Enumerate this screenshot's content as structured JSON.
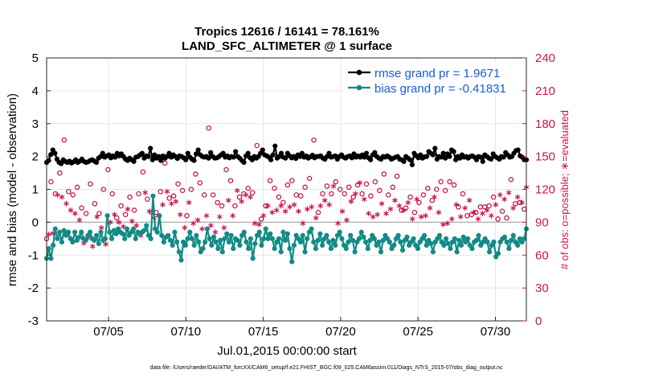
{
  "chart_data": {
    "type": "line",
    "title_line1": "Tropics 12616 / 16141 = 78.161%",
    "title_line2": "LAND_SFC_ALTIMETER @ 1 surface",
    "xlabel": "Jul.01,2015 00:00:00 start",
    "ylabel_left": "rmse and bias (model - observation)",
    "ylabel_right": "# of obs: o=possible; ∗=evaluated",
    "x_ticks": [
      {
        "value": 5,
        "label": "07/05"
      },
      {
        "value": 10,
        "label": "07/10"
      },
      {
        "value": 15,
        "label": "07/15"
      },
      {
        "value": 20,
        "label": "07/20"
      },
      {
        "value": 25,
        "label": "07/25"
      },
      {
        "value": 30,
        "label": "07/30"
      }
    ],
    "xlim": [
      1,
      32
    ],
    "ylim_left": [
      -3,
      5
    ],
    "ylim_right": [
      0,
      240
    ],
    "yticks_left": [
      "-3",
      "-2",
      "-1",
      "0",
      "1",
      "2",
      "3",
      "4",
      "5"
    ],
    "yticks_right": [
      "0",
      "30",
      "60",
      "90",
      "120",
      "150",
      "180",
      "210",
      "240"
    ],
    "legend": [
      {
        "name": "rmse grand pr = 1.9671",
        "color": "#000000"
      },
      {
        "name": "bias grand pr = -0.41831",
        "color": "#138a86"
      }
    ],
    "rmse": [
      1.82,
      1.88,
      2.06,
      2.2,
      2.1,
      1.92,
      1.82,
      1.78,
      1.9,
      1.85,
      1.82,
      1.86,
      1.8,
      1.84,
      1.9,
      1.82,
      1.86,
      1.92,
      1.85,
      1.82,
      1.84,
      1.88,
      1.9,
      1.86,
      1.82,
      1.95,
      2.0,
      2.1,
      1.98,
      2.02,
      2.05,
      1.96,
      2.02,
      1.98,
      2.1,
      2.02,
      2.08,
      2.0,
      1.92,
      1.88,
      1.95,
      1.9,
      1.85,
      1.98,
      2.0,
      2.05,
      2.1,
      1.95,
      2.02,
      2.0,
      2.25,
      1.9,
      2.05,
      1.95,
      2.0,
      1.88,
      2.02,
      1.95,
      2.0,
      2.1,
      1.98,
      2.05,
      2.0,
      1.94,
      2.02,
      2.0,
      1.96,
      1.9,
      2.1,
      1.98,
      1.92,
      1.88,
      2.08,
      2.2,
      2.05,
      2.0,
      1.98,
      2.0,
      1.95,
      2.12,
      2.0,
      1.95,
      1.96,
      2.0,
      2.05,
      2.1,
      1.98,
      2.02,
      1.96,
      2.0,
      1.98,
      2.15,
      2.0,
      1.95,
      1.88,
      1.82,
      2.02,
      2.1,
      1.96,
      1.9,
      2.0,
      1.95,
      2.0,
      2.1,
      2.2,
      2.05,
      2.02,
      1.98,
      1.9,
      2.05,
      2.32,
      1.95,
      2.0,
      2.1,
      1.98,
      1.95,
      2.1,
      2.02,
      1.96,
      2.0,
      1.94,
      2.05,
      2.0,
      2.1,
      1.98,
      2.02,
      1.95,
      1.99,
      2.04,
      1.96,
      2.0,
      2.0,
      2.02,
      1.95,
      1.92,
      2.0,
      2.1,
      1.98,
      2.0,
      2.02,
      1.92,
      2.0,
      2.05,
      1.98,
      1.95,
      2.0,
      2.02,
      1.96,
      2.08,
      1.98,
      2.02,
      1.98,
      2.05,
      1.98,
      2.1,
      1.96,
      1.9,
      2.05,
      2.12,
      2.0,
      1.95,
      1.92,
      2.0,
      1.98,
      2.02,
      1.98,
      1.92,
      1.95,
      1.98,
      2.0,
      1.92,
      1.9,
      1.85,
      2.0,
      1.95,
      1.9,
      1.75,
      2.1,
      2.02,
      1.96,
      2.05,
      1.95,
      1.99,
      2.0,
      2.15,
      2.1,
      2.05,
      2.25,
      1.92,
      2.0,
      1.98,
      2.1,
      1.95,
      2.08,
      2.0,
      2.2,
      2.15,
      1.9,
      2.0,
      1.95,
      2.05,
      1.98,
      2.0,
      1.95,
      2.0,
      2.02,
      1.98,
      1.9,
      2.0,
      1.98,
      1.85,
      2.05,
      2.0,
      1.95,
      1.92,
      2.08,
      2.0,
      1.96,
      1.92,
      2.0,
      1.98,
      2.12,
      2.05,
      1.98,
      2.0,
      2.1,
      2.18,
      2.2,
      2.02,
      1.98,
      1.9,
      1.9
    ],
    "bias": [
      -1.1,
      -0.8,
      -1.1,
      -0.7,
      -0.2,
      -0.5,
      -0.3,
      -0.6,
      -0.25,
      -0.4,
      -0.3,
      -0.5,
      -0.6,
      -0.3,
      -0.55,
      -0.45,
      -0.3,
      -0.5,
      -0.55,
      -0.4,
      -0.3,
      -0.5,
      -0.55,
      -0.4,
      -0.65,
      -0.3,
      -0.55,
      -0.5,
      0.2,
      -0.3,
      -0.5,
      -0.25,
      -0.35,
      -0.2,
      -0.3,
      -0.35,
      -0.5,
      -0.2,
      -0.4,
      -0.3,
      -0.2,
      -0.5,
      -0.3,
      -0.35,
      -0.3,
      -0.25,
      -0.1,
      -0.4,
      -0.5,
      0.8,
      -0.2,
      -0.3,
      0.2,
      -0.4,
      -0.6,
      -0.45,
      -0.4,
      -0.55,
      -0.7,
      -0.3,
      -0.6,
      -0.9,
      -1.15,
      -0.6,
      -0.7,
      -0.5,
      -0.3,
      -0.5,
      -0.7,
      -0.4,
      -0.6,
      -0.9,
      -0.8,
      -0.6,
      -0.2,
      -0.5,
      -0.7,
      -0.45,
      -0.6,
      -0.8,
      -0.55,
      -0.9,
      -0.5,
      -0.35,
      -0.6,
      -0.4,
      -0.8,
      -0.5,
      -0.55,
      -0.7,
      -0.4,
      -0.3,
      -0.6,
      -0.8,
      -0.5,
      -1.1,
      -0.65,
      -0.4,
      -0.3,
      -0.7,
      -0.5,
      -0.2,
      -0.5,
      -0.35,
      -0.5,
      -0.8,
      -0.6,
      -0.5,
      -0.9,
      -0.3,
      -0.55,
      -0.35,
      -0.8,
      -1.2,
      -0.7,
      -0.4,
      -0.5,
      -0.6,
      -0.4,
      -0.9,
      -0.5,
      -0.3,
      -0.2,
      -0.6,
      -0.8,
      -0.55,
      -0.35,
      -0.7,
      -0.5,
      -0.4,
      -0.6,
      -0.8,
      -0.55,
      -0.7,
      -0.4,
      -0.3,
      -0.5,
      -0.7,
      -0.8,
      -0.6,
      -0.4,
      -0.55,
      -0.9,
      -0.6,
      -0.5,
      -0.3,
      -0.45,
      -0.6,
      -0.8,
      -0.55,
      -0.4,
      -0.5,
      -0.7,
      -0.6,
      -0.9,
      -0.55,
      -0.4,
      -0.5,
      -0.6,
      -0.8,
      -0.7,
      -0.5,
      -0.4,
      -0.6,
      -0.85,
      -0.55,
      -0.45,
      -0.7,
      -0.6,
      -0.5,
      -0.7,
      -0.8,
      -0.6,
      -0.5,
      -0.4,
      -0.7,
      -0.55,
      -0.65,
      -0.9,
      -0.6,
      -0.5,
      -0.4,
      -0.6,
      -0.7,
      -0.5,
      -0.65,
      -0.8,
      -0.6,
      -0.5,
      -0.9,
      -0.55,
      -0.7,
      -0.45,
      -0.6,
      -0.5,
      -0.7,
      -0.8,
      -0.6,
      -0.55,
      -0.4,
      -0.7,
      -0.6,
      -0.5,
      -0.6,
      -0.9,
      -0.7,
      -0.6,
      -1.05,
      -0.95,
      -0.6,
      -0.5,
      -0.45,
      -0.6,
      -0.8,
      -0.55,
      -0.4,
      -0.6,
      -0.7,
      -0.5,
      -0.6,
      -0.5,
      -0.2
    ],
    "obs_possible": [
      75,
      99,
      127,
      112,
      116,
      147,
      135,
      141,
      165,
      128,
      118,
      108,
      115,
      127,
      122,
      132,
      103,
      92,
      98,
      105,
      125,
      118,
      107,
      103,
      98,
      112,
      120,
      120,
      138,
      122,
      116,
      104,
      94,
      110,
      105,
      112,
      97,
      102,
      113,
      90,
      101,
      110,
      116,
      122,
      136,
      118,
      111,
      88,
      99,
      102,
      99,
      105,
      118,
      123,
      144,
      121,
      112,
      104,
      114,
      97,
      125,
      107,
      119,
      90,
      96,
      111,
      120,
      98,
      134,
      121,
      126,
      108,
      115,
      135,
      176,
      124,
      115,
      123,
      108,
      115,
      105,
      110,
      138,
      132,
      128,
      103,
      105,
      120,
      113,
      124,
      116,
      108,
      121,
      167,
      117,
      110,
      160,
      123,
      93,
      118,
      105,
      115,
      128,
      130,
      121,
      135,
      113,
      122,
      108,
      126,
      124,
      117,
      128,
      130,
      115,
      109,
      114,
      121,
      122,
      123,
      130,
      133,
      165,
      118,
      99,
      121,
      116,
      127,
      123,
      118,
      116,
      124,
      127,
      109,
      120,
      129,
      116,
      133,
      122,
      117,
      113,
      112,
      124,
      129,
      116,
      132,
      125,
      120,
      114,
      111,
      127,
      128,
      119,
      113,
      134,
      126,
      115,
      103,
      122,
      120,
      132,
      115,
      101,
      118,
      103,
      107,
      113,
      119,
      99,
      128,
      108,
      114,
      115,
      125,
      121,
      102,
      110,
      114,
      120,
      100,
      127,
      114,
      119,
      105,
      127,
      99,
      124,
      114,
      104,
      99,
      116,
      112,
      96,
      92,
      97,
      97,
      99,
      100,
      104,
      116,
      104,
      99,
      105,
      121,
      113,
      127,
      93,
      134,
      100,
      118,
      94,
      124,
      129,
      111,
      107,
      121,
      108,
      99,
      102,
      122
    ],
    "obs_evaluated": [
      83,
      79,
      66,
      80,
      88,
      115,
      125,
      113,
      102,
      107,
      90,
      101,
      95,
      98,
      83,
      92,
      73,
      71,
      68,
      76,
      74,
      68,
      72,
      95,
      69,
      85,
      99,
      70,
      77,
      90,
      92,
      97,
      105,
      90,
      88,
      86,
      78,
      102,
      94,
      91,
      93,
      87,
      83,
      78,
      95,
      117,
      108,
      100,
      87,
      94,
      120,
      96,
      98,
      106,
      125,
      118,
      103,
      107,
      95,
      109,
      98,
      97,
      117,
      85,
      80,
      108,
      93,
      89,
      100,
      92,
      104,
      84,
      102,
      96,
      77,
      87,
      106,
      81,
      89,
      95,
      113,
      85,
      98,
      110,
      104,
      96,
      99,
      119,
      92,
      109,
      84,
      115,
      93,
      113,
      84,
      89,
      107,
      88,
      80,
      96,
      100,
      105,
      94,
      99,
      106,
      101,
      87,
      105,
      94,
      100,
      92,
      104,
      109,
      106,
      96,
      100,
      96,
      89,
      108,
      102,
      96,
      104,
      104,
      94,
      109,
      105,
      99,
      110,
      103,
      106,
      102,
      123,
      117,
      89,
      104,
      100,
      110,
      92,
      98,
      109,
      117,
      116,
      99,
      126,
      106,
      111,
      108,
      98,
      113,
      95,
      104,
      97,
      98,
      107,
      112,
      98,
      100,
      102,
      104,
      110,
      115,
      105,
      113,
      101,
      96,
      108,
      101,
      93,
      107,
      111,
      84,
      95,
      110,
      96,
      88,
      103,
      106,
      113,
      95,
      99,
      97,
      88,
      93,
      89,
      110,
      93,
      100,
      106,
      91,
      95,
      102,
      103,
      88,
      110,
      105,
      99,
      103,
      93,
      93,
      98,
      102,
      101,
      99,
      96,
      110,
      106,
      108,
      115,
      119,
      111,
      104,
      117,
      120,
      103,
      101,
      113,
      116,
      108,
      112,
      122
    ]
  },
  "footnote": "data file: /Users/raeder/DAI/ATM_forcXX/CAM6_setup/f.e21.FHIST_BGC.f09_025.CAM6assim.011/Diags_NTrS_2015-07/obs_diag_output.nc",
  "colors": {
    "rmse": "#000000",
    "bias": "#138a86",
    "obs": "#c6154f",
    "grid": "#e6e6e6",
    "zero_line": "#b5b5b5",
    "legend_text": "#1a5bd6"
  }
}
